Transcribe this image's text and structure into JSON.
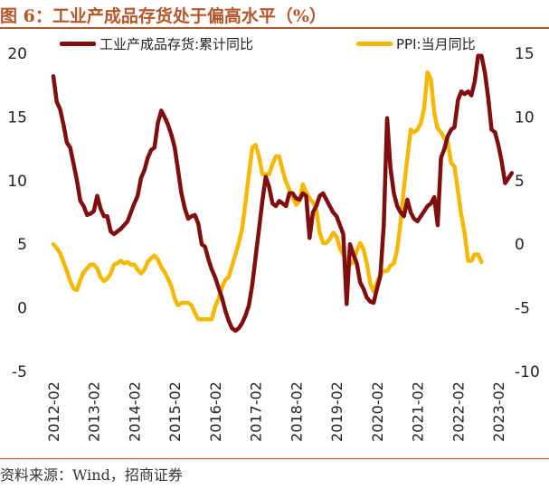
{
  "title": "图 6：工业产成品存货处于偏高水平（%）",
  "source": "资料来源：Wind，招商证券",
  "chart_data": {
    "type": "line",
    "title": "工业产成品存货处于偏高水平（%）",
    "x_tick_labels": [
      "2012-02",
      "2013-02",
      "2014-02",
      "2015-02",
      "2016-02",
      "2017-02",
      "2018-02",
      "2019-02",
      "2020-02",
      "2021-02",
      "2022-02",
      "2023-02"
    ],
    "y_left": {
      "lim": [
        -5,
        20
      ],
      "ticks": [
        -5,
        0,
        5,
        10,
        15,
        20
      ]
    },
    "y_right": {
      "lim": [
        -10,
        15
      ],
      "ticks": [
        -10,
        -5,
        0,
        5,
        10,
        15
      ]
    },
    "series": [
      {
        "name": "工业产成品存货:累计同比",
        "axis": "left",
        "color": "#7f0f0f",
        "start": "2012-02",
        "values": [
          18.2,
          16.2,
          15.6,
          14.4,
          13.0,
          12.6,
          11.3,
          10.0,
          8.4,
          8.0,
          7.3,
          7.4,
          7.6,
          8.8,
          7.8,
          7.2,
          7.2,
          6.0,
          5.8,
          6.0,
          6.2,
          6.5,
          6.8,
          7.5,
          8.2,
          8.8,
          10.2,
          10.8,
          11.8,
          12.4,
          12.6,
          14.5,
          15.5,
          15.0,
          14.4,
          13.6,
          12.6,
          10.8,
          9.0,
          7.8,
          7.0,
          7.2,
          7.3,
          6.6,
          5.0,
          4.8,
          3.8,
          3.0,
          2.4,
          1.6,
          0.8,
          -0.2,
          -1.0,
          -1.6,
          -1.8,
          -1.6,
          -1.2,
          -0.6,
          0.2,
          1.8,
          4.0,
          6.2,
          8.4,
          10.3,
          9.5,
          8.2,
          8.0,
          8.4,
          8.2,
          8.0,
          9.0,
          9.0,
          8.6,
          8.5,
          9.0,
          8.8,
          5.5,
          7.5,
          8.0,
          8.8,
          9.0,
          8.5,
          8.0,
          7.5,
          7.2,
          6.5,
          5.8,
          0.3,
          5.0,
          4.2,
          3.5,
          2.0,
          1.5,
          0.8,
          0.5,
          0.4,
          1.5,
          2.5,
          6.5,
          14.9,
          11.0,
          9.0,
          8.0,
          7.5,
          7.2,
          8.5,
          7.5,
          7.0,
          6.8,
          7.2,
          7.6,
          8.0,
          8.2,
          8.7,
          6.5,
          11.8,
          12.5,
          13.5,
          14.0,
          14.2,
          16.3,
          17.0,
          16.8,
          17.0,
          16.7,
          17.8,
          19.8,
          19.8,
          18.5,
          16.5,
          14.0,
          13.8,
          12.8,
          11.5,
          9.8,
          10.2,
          10.6
        ]
      },
      {
        "name": "PPI:当月同比",
        "axis": "right",
        "color": "#f5b800",
        "start": "2012-02",
        "values": [
          0.0,
          -0.3,
          -0.7,
          -1.4,
          -2.1,
          -2.9,
          -3.5,
          -3.6,
          -2.8,
          -2.2,
          -1.9,
          -1.6,
          -1.6,
          -1.9,
          -2.6,
          -2.9,
          -2.7,
          -2.3,
          -1.6,
          -1.5,
          -1.3,
          -1.5,
          -1.4,
          -1.6,
          -1.6,
          -2.0,
          -2.3,
          -2.0,
          -1.4,
          -1.1,
          -0.9,
          -1.2,
          -1.8,
          -2.2,
          -2.7,
          -3.3,
          -4.3,
          -4.8,
          -4.6,
          -4.6,
          -4.6,
          -4.8,
          -5.4,
          -5.9,
          -5.9,
          -5.9,
          -5.9,
          -5.9,
          -4.9,
          -4.3,
          -3.4,
          -2.8,
          -2.6,
          -1.7,
          -0.8,
          0.1,
          1.2,
          3.3,
          5.5,
          7.6,
          7.8,
          6.9,
          5.5,
          5.5,
          5.5,
          6.3,
          6.9,
          6.9,
          5.8,
          4.9,
          4.3,
          3.7,
          3.1,
          3.4,
          4.7,
          4.1,
          3.6,
          3.3,
          2.7,
          0.9,
          0.1,
          0.1,
          0.4,
          0.9,
          0.6,
          -0.3,
          -0.8,
          -1.2,
          -1.6,
          -1.4,
          -0.5,
          0.1,
          -0.4,
          -1.5,
          -3.1,
          -3.7,
          -3.0,
          -2.4,
          -2.1,
          -2.1,
          -1.7,
          -1.5,
          -0.4,
          1.7,
          4.4,
          6.8,
          9.0,
          8.8,
          9.0,
          9.5,
          10.7,
          13.5,
          12.9,
          10.3,
          9.1,
          8.8,
          8.3,
          8.0,
          6.4,
          6.1,
          4.2,
          2.3,
          0.9,
          -1.3,
          -1.3,
          -0.8,
          -0.8,
          -1.4
        ]
      }
    ]
  }
}
